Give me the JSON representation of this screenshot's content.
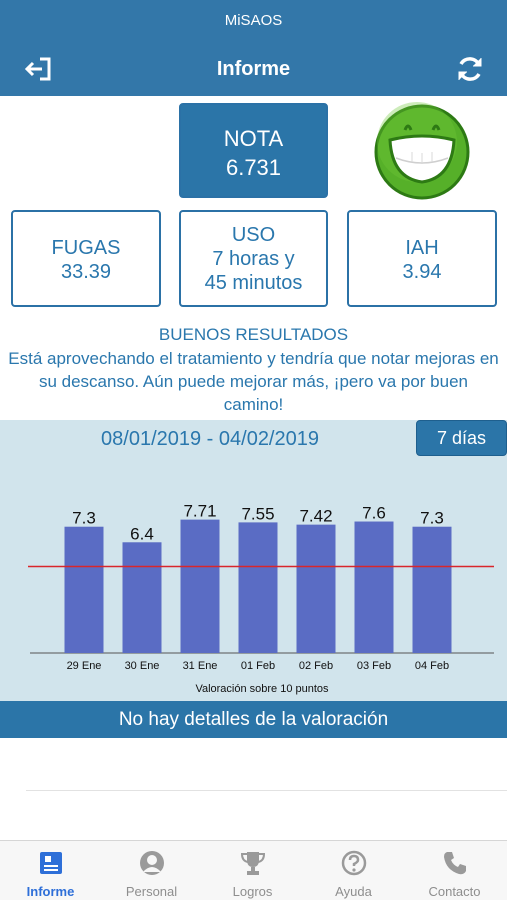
{
  "header": {
    "status_title": "MiSAOS",
    "title": "Informe"
  },
  "score": {
    "nota_label": "NOTA",
    "nota_value": "6.731",
    "fugas_label": "FUGAS",
    "fugas_value": "33.39",
    "uso_label": "USO",
    "uso_line1": "7 horas y",
    "uso_line2": "45 minutos",
    "iah_label": "IAH",
    "iah_value": "3.94"
  },
  "result": {
    "title": "BUENOS RESULTADOS",
    "text": "Está aprovechando el tratamiento y tendría que notar mejoras en su descanso. Aún puede mejorar más, ¡pero va por buen camino!"
  },
  "chart_header": {
    "date_range": "08/01/2019 - 04/02/2019",
    "period_button": "7 días"
  },
  "chart_data": {
    "type": "bar",
    "categories": [
      "29 Ene",
      "30 Ene",
      "31 Ene",
      "01 Feb",
      "02 Feb",
      "03 Feb",
      "04 Feb"
    ],
    "values": [
      7.3,
      6.4,
      7.71,
      7.55,
      7.42,
      7.6,
      7.3
    ],
    "value_labels": [
      "7.3",
      "6.4",
      "7.71",
      "7.55",
      "7.42",
      "7.6",
      "7.3"
    ],
    "xlabel": "Valoración sobre 10 puntos",
    "ylabel": "",
    "ylim": [
      0,
      10
    ],
    "reference_line": 5,
    "bar_color": "#5a6cc4",
    "reference_color": "#d9262b",
    "grid": false
  },
  "details": {
    "text": "No hay detalles de la valoración"
  },
  "tabs": [
    {
      "label": "Informe",
      "icon": "report-icon",
      "active": true
    },
    {
      "label": "Personal",
      "icon": "person-icon",
      "active": false
    },
    {
      "label": "Logros",
      "icon": "trophy-icon",
      "active": false
    },
    {
      "label": "Ayuda",
      "icon": "help-icon",
      "active": false
    },
    {
      "label": "Contacto",
      "icon": "phone-icon",
      "active": false
    }
  ],
  "colors": {
    "primary": "#2b75a8",
    "text": "#2a77ad",
    "chart_bg": "#d1e4ec",
    "active_tab": "#2e6fd8",
    "inactive_tab": "#8e8e8e"
  }
}
